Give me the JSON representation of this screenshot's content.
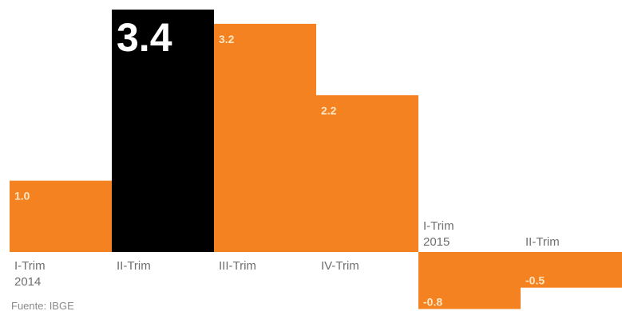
{
  "chart_data": {
    "type": "bar",
    "categories": [
      [
        "I-Trim",
        "2014"
      ],
      [
        "II-Trim"
      ],
      [
        "III-Trim"
      ],
      [
        "IV-Trim"
      ],
      [
        "I-Trim",
        "2015"
      ],
      [
        "II-Trim"
      ]
    ],
    "values": [
      1.0,
      3.4,
      3.2,
      2.2,
      -0.8,
      -0.5
    ],
    "value_labels": [
      "1.0",
      "3.4",
      "3.2",
      "2.2",
      "-0.8",
      "-0.5"
    ],
    "highlight_index": 1,
    "ylim": [
      -0.8,
      3.4
    ],
    "grid": false,
    "colors": {
      "bar": "#f58220",
      "highlight": "#000000",
      "label_light": "#ffe6c4",
      "label_highlight": "#ffffff",
      "tick": "#6f6f6f",
      "background": "#ffffff"
    }
  },
  "footnote": "Fuente: IBGE"
}
